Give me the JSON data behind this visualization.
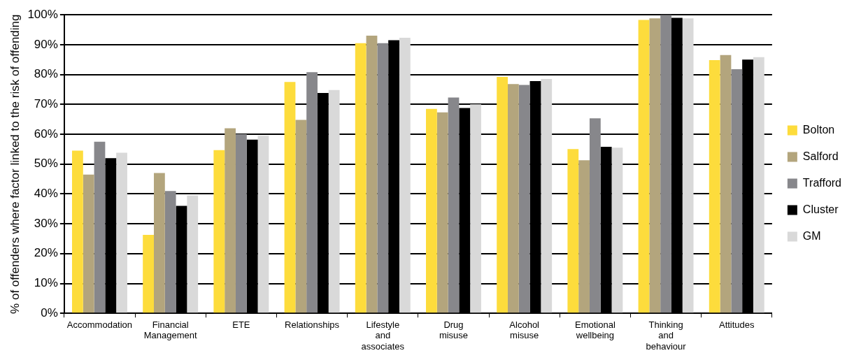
{
  "chart_data": {
    "type": "bar",
    "ylabel": "% of offenders where factor linked to the risk of offending",
    "categories": [
      "Accommodation",
      "Financial Management",
      "ETE",
      "Relationships",
      "Lifestyle and associates",
      "Drug misuse",
      "Alcohol misuse",
      "Emotional wellbeing",
      "Thinking and behaviour",
      "Attitudes"
    ],
    "series": [
      {
        "name": "Bolton",
        "color": "#fddc3c",
        "values": [
          54.5,
          26.3,
          54.7,
          77.5,
          90.5,
          68.5,
          79.2,
          55,
          98.3,
          84.8
        ]
      },
      {
        "name": "Salford",
        "color": "#b3a57d",
        "values": [
          46.5,
          47,
          62,
          64.8,
          93,
          67.3,
          76.8,
          51.3,
          98.8,
          86.5
        ]
      },
      {
        "name": "Trafford",
        "color": "#87878b",
        "values": [
          57.5,
          41,
          60,
          80.8,
          90.5,
          72.3,
          76.5,
          65.3,
          100,
          81.8
        ]
      },
      {
        "name": "Cluster",
        "color": "#000000",
        "values": [
          52,
          36,
          58.2,
          73.8,
          91.5,
          68.8,
          77.8,
          55.8,
          99,
          85
        ]
      },
      {
        "name": "GM",
        "color": "#d9d9d9",
        "values": [
          53.8,
          39.5,
          59.5,
          74.8,
          92.3,
          70,
          78.5,
          55.5,
          98.8,
          85.8
        ]
      }
    ],
    "ylim": [
      0,
      100
    ],
    "yticks": [
      {
        "value": 0,
        "label": "0%"
      },
      {
        "value": 10,
        "label": "10%"
      },
      {
        "value": 20,
        "label": "20%"
      },
      {
        "value": 30,
        "label": "30%"
      },
      {
        "value": 40,
        "label": "40%"
      },
      {
        "value": 50,
        "label": "50%"
      },
      {
        "value": 60,
        "label": "60%"
      },
      {
        "value": 70,
        "label": "70%"
      },
      {
        "value": 80,
        "label": "80%"
      },
      {
        "value": 90,
        "label": "90%"
      },
      {
        "value": 100,
        "label": "100%"
      }
    ],
    "grid": "y",
    "legend": "right"
  }
}
